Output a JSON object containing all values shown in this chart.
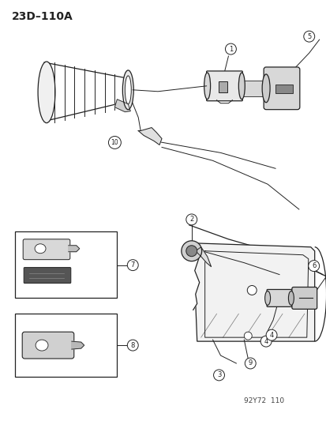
{
  "title": "23D–110A",
  "watermark": "92Y72  110",
  "bg_color": "#ffffff",
  "fg_color": "#222222",
  "figsize": [
    4.14,
    5.33
  ],
  "dpi": 100
}
